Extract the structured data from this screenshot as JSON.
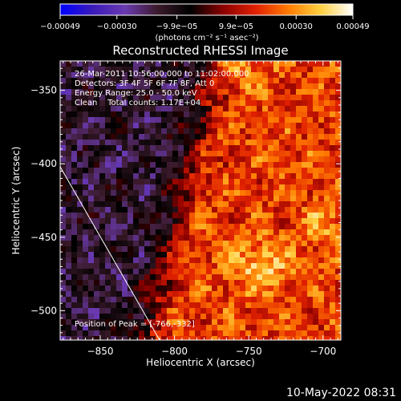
{
  "chart_data": {
    "type": "heatmap",
    "title": "Reconstructed RHESSI Image",
    "xlabel": "Heliocentric X (arcsec)",
    "ylabel": "Heliocentric Y (arcsec)",
    "xlim": [
      -877,
      -688
    ],
    "ylim": [
      -520,
      -330
    ],
    "x_ticks": [
      -850,
      -800,
      -750,
      -700
    ],
    "y_ticks": [
      -350,
      -400,
      -450,
      -500
    ],
    "x_tick_labels": [
      "−850",
      "−800",
      "−750",
      "−700"
    ],
    "y_tick_labels": [
      "−350",
      "−400",
      "−450",
      "−500"
    ],
    "colorbar": {
      "range": [
        -0.00049,
        0.00049
      ],
      "tick_values": [
        -0.00049,
        -0.0003,
        -9.9e-05,
        9.9e-05,
        0.0003,
        0.00049
      ],
      "tick_labels": [
        "−0.00049",
        "−0.00030",
        "−9.9e−05",
        "9.9e−05",
        "0.00030",
        "0.00049"
      ],
      "colormap": [
        "#0000ff",
        "#3a1ab8",
        "#6a3ab0",
        "#3a1a2a",
        "#000000",
        "#8a0000",
        "#e02000",
        "#ff7a00",
        "#ffd040",
        "#ffffff"
      ]
    },
    "units_label": "(photons cm⁻² s⁻¹ asec⁻²)",
    "annotations": [
      "26-Mar-2011 10:56:00.000 to 11:02:00.000",
      "Detectors: 3F 4F 5F 6F 7F 8F, Att 0",
      "Energy Range: 25.0 - 50.0 keV",
      "Clean    Total counts: 1.17E+04"
    ],
    "peak_label": "Position of Peak = [-766,-332]",
    "peak_position": [
      -766,
      -332
    ],
    "limb_line": [
      [
        -877,
        -402
      ],
      [
        -810,
        -520
      ]
    ],
    "grid": false
  },
  "footer": {
    "timestamp": "10-May-2022 08:31"
  }
}
